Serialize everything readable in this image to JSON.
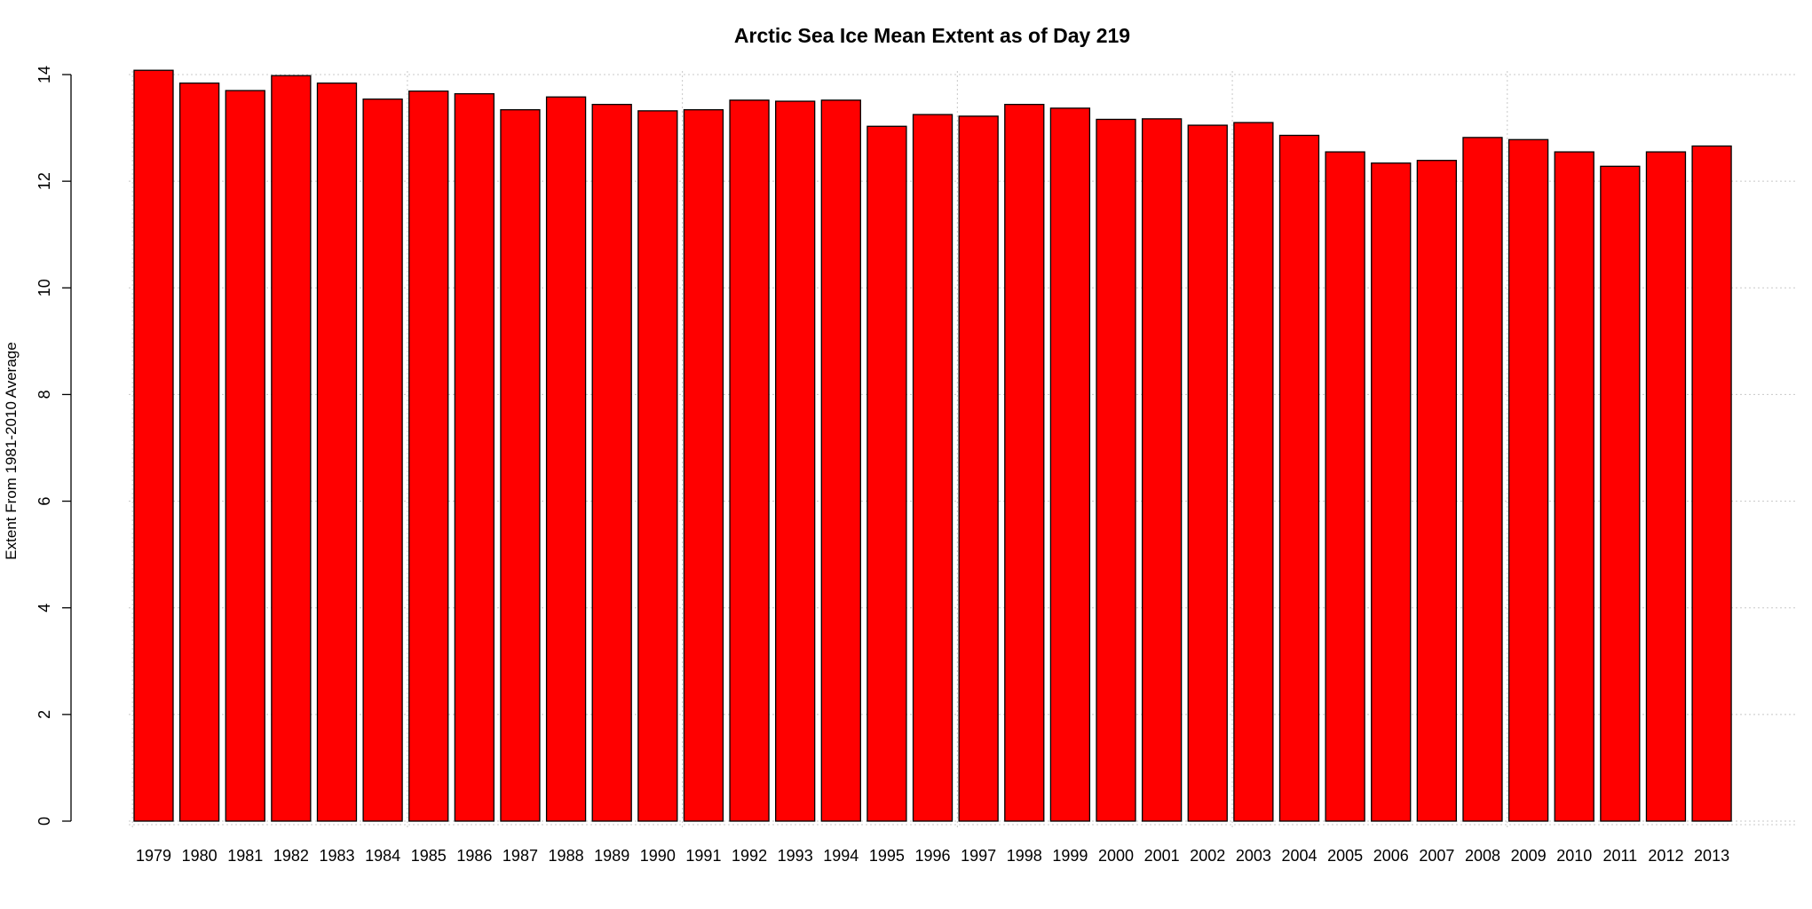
{
  "chart_data": {
    "type": "bar",
    "title": "Arctic Sea Ice Mean Extent as of Day 219",
    "xlabel": "",
    "ylabel": "Extent From 1981-2010 Average",
    "ylim": [
      0,
      14
    ],
    "y_ticks": [
      "0",
      "2",
      "4",
      "6",
      "8",
      "10",
      "12",
      "14"
    ],
    "grid": true,
    "bar_color": "#ff0000",
    "categories": [
      "1979",
      "1980",
      "1981",
      "1982",
      "1983",
      "1984",
      "1985",
      "1986",
      "1987",
      "1988",
      "1989",
      "1990",
      "1991",
      "1992",
      "1993",
      "1994",
      "1995",
      "1996",
      "1997",
      "1998",
      "1999",
      "2000",
      "2001",
      "2002",
      "2003",
      "2004",
      "2005",
      "2006",
      "2007",
      "2008",
      "2009",
      "2010",
      "2011",
      "2012",
      "2013"
    ],
    "values": [
      14.08,
      13.84,
      13.7,
      13.98,
      13.84,
      13.54,
      13.69,
      13.64,
      13.34,
      13.58,
      13.44,
      13.32,
      13.34,
      13.52,
      13.5,
      13.52,
      13.03,
      13.25,
      13.22,
      13.44,
      13.37,
      13.16,
      13.17,
      13.05,
      13.1,
      12.86,
      12.55,
      12.34,
      12.39,
      12.82,
      12.78,
      12.55,
      12.28,
      12.55,
      12.66
    ]
  }
}
